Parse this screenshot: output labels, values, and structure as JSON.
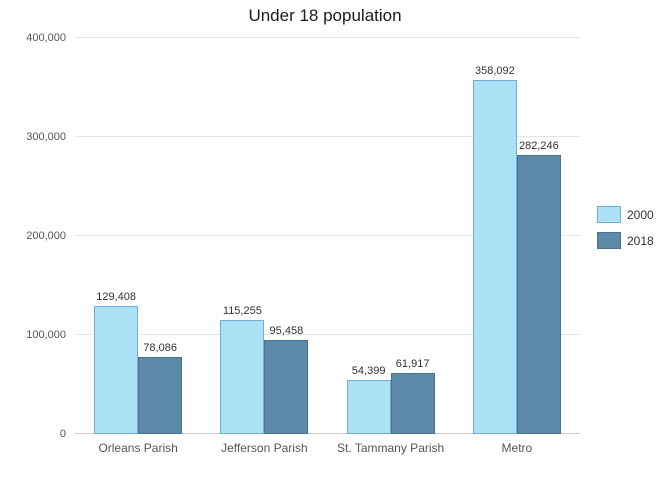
{
  "chart_data": {
    "type": "bar",
    "title": "Under 18 population",
    "categories": [
      "Orleans Parish",
      "Jefferson Parish",
      "St. Tammany Parish",
      "Metro"
    ],
    "series": [
      {
        "name": "2000",
        "values": [
          129408,
          115255,
          54399,
          358092
        ],
        "color": "#ace0f5",
        "border": "#6fafd2"
      },
      {
        "name": "2018",
        "values": [
          78086,
          95458,
          61917,
          282246
        ],
        "color": "#5d89a8",
        "border": "#4a7190"
      }
    ],
    "xlabel": "",
    "ylabel": "",
    "ylim": [
      0,
      400000
    ],
    "yticks": [
      0,
      100000,
      200000,
      300000,
      400000
    ],
    "grid": true,
    "legend_position": "right"
  }
}
